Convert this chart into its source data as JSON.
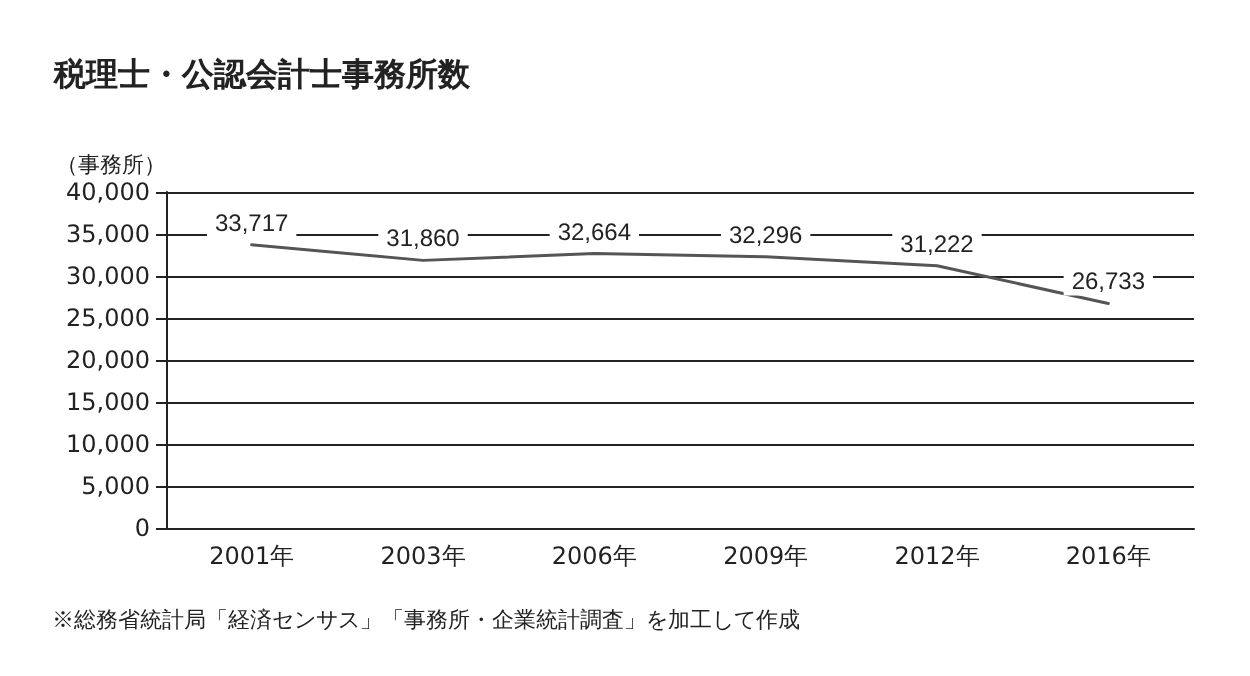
{
  "chart_data": {
    "type": "line",
    "title": "税理士・公認会計士事務所数",
    "ylabel": "（事務所）",
    "categories": [
      "2001年",
      "2003年",
      "2006年",
      "2009年",
      "2012年",
      "2016年"
    ],
    "series": [
      {
        "color": "#555555",
        "values": [
          33717,
          31860,
          32664,
          32296,
          31222,
          26733
        ],
        "value_labels": [
          "33,717",
          "31,860",
          "32,664",
          "32,296",
          "31,222",
          "26,733"
        ]
      }
    ],
    "ylim": [
      0,
      40000
    ],
    "yticks": [
      0,
      {
        "value": 5000,
        "label": "5,000"
      },
      {
        "value": 10000,
        "label": "10,000"
      },
      {
        "value": 15000,
        "label": "15,000"
      },
      {
        "value": 20000,
        "label": "20,000"
      },
      {
        "value": 25000,
        "label": "25,000"
      },
      {
        "value": 30000,
        "label": "30,000"
      },
      {
        "value": 35000,
        "label": "35,000"
      },
      {
        "value": 40000,
        "label": "40,000"
      }
    ],
    "grid": "y",
    "marker": "none",
    "line_style": "solid",
    "annotations": [
      "※総務省統計局「経済センサス」「事務所・企業統計調査」を加工して作成"
    ]
  }
}
